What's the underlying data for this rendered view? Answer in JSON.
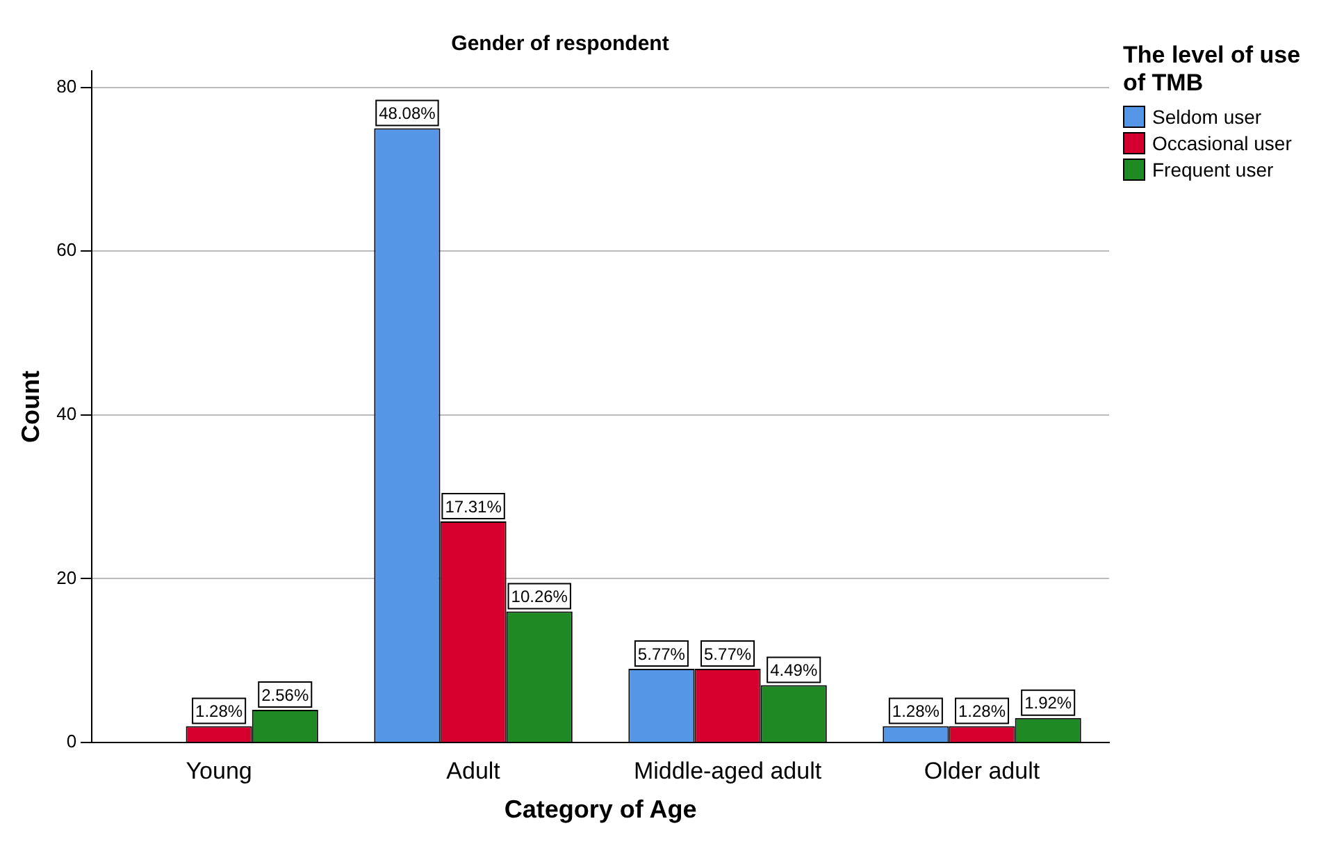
{
  "chart_data": {
    "type": "bar",
    "title": "Gender of respondent",
    "xlabel": "Category of Age",
    "ylabel": "Count",
    "legend_title": "The level of use of TMB",
    "categories": [
      "Young",
      "Adult",
      "Middle-aged adult",
      "Older adult"
    ],
    "series": [
      {
        "name": "Seldom user",
        "color": "#5596e6",
        "values": [
          0,
          75,
          9,
          2
        ]
      },
      {
        "name": "Occasional user",
        "color": "#d6002f",
        "values": [
          2,
          27,
          9,
          2
        ]
      },
      {
        "name": "Frequent user",
        "color": "#1f8a23",
        "values": [
          4,
          16,
          7,
          3
        ]
      }
    ],
    "annotations": [
      "1.28%",
      "2.56%",
      "48.08%",
      "17.31%",
      "10.26%",
      "5.77%",
      "5.77%",
      "4.49%",
      "1.28%",
      "1.28%",
      "1.92%"
    ],
    "ylim": [
      0,
      82
    ],
    "yticks": [
      0,
      20,
      40,
      60,
      80
    ],
    "grid": "y",
    "legend": "top right"
  }
}
